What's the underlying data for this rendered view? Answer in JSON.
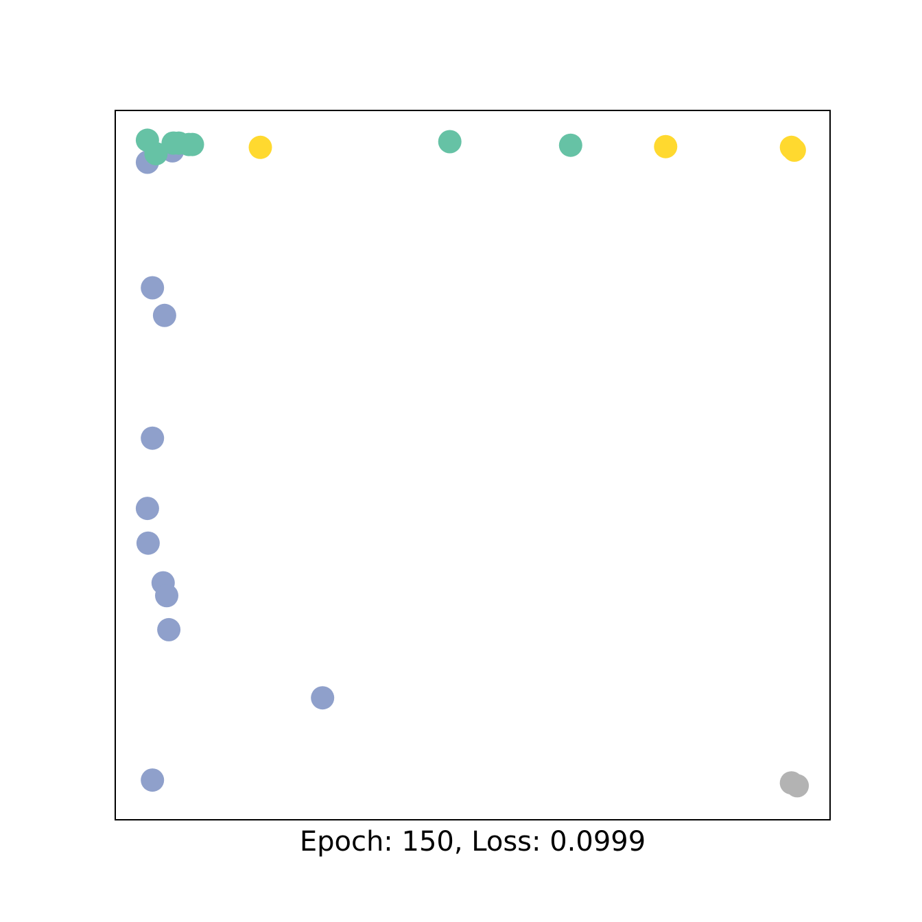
{
  "chart_data": {
    "type": "scatter",
    "title": "",
    "xlabel": "Epoch: 150, Loss: 0.0999",
    "ylabel": "",
    "xlim": [
      0,
      100
    ],
    "ylim": [
      0,
      100
    ],
    "grid": false,
    "legend": "none",
    "ticks": "hidden",
    "series": [
      {
        "color": "#8fa0cb",
        "points": [
          {
            "x": 4.5,
            "y": 92.7
          },
          {
            "x": 8.0,
            "y": 94.3
          },
          {
            "x": 5.2,
            "y": 75.0
          },
          {
            "x": 6.9,
            "y": 71.1
          },
          {
            "x": 5.2,
            "y": 53.8
          },
          {
            "x": 4.5,
            "y": 43.9
          },
          {
            "x": 4.6,
            "y": 39.0
          },
          {
            "x": 6.7,
            "y": 33.4
          },
          {
            "x": 7.2,
            "y": 31.6
          },
          {
            "x": 7.5,
            "y": 26.8
          },
          {
            "x": 29.0,
            "y": 17.2
          },
          {
            "x": 5.2,
            "y": 5.6
          }
        ]
      },
      {
        "color": "#66c2a5",
        "points": [
          {
            "x": 4.5,
            "y": 95.8
          },
          {
            "x": 5.7,
            "y": 93.9
          },
          {
            "x": 8.1,
            "y": 95.4
          },
          {
            "x": 8.9,
            "y": 95.4
          },
          {
            "x": 10.3,
            "y": 95.2
          },
          {
            "x": 10.8,
            "y": 95.2
          },
          {
            "x": 46.8,
            "y": 95.6
          },
          {
            "x": 63.7,
            "y": 95.1
          }
        ]
      },
      {
        "color": "#ffd92f",
        "points": [
          {
            "x": 20.3,
            "y": 94.8
          },
          {
            "x": 77.0,
            "y": 94.9
          },
          {
            "x": 94.6,
            "y": 94.8
          },
          {
            "x": 95.0,
            "y": 94.4
          }
        ]
      },
      {
        "color": "#b3b3b3",
        "points": [
          {
            "x": 94.6,
            "y": 5.2
          },
          {
            "x": 95.4,
            "y": 4.8
          }
        ]
      }
    ]
  }
}
